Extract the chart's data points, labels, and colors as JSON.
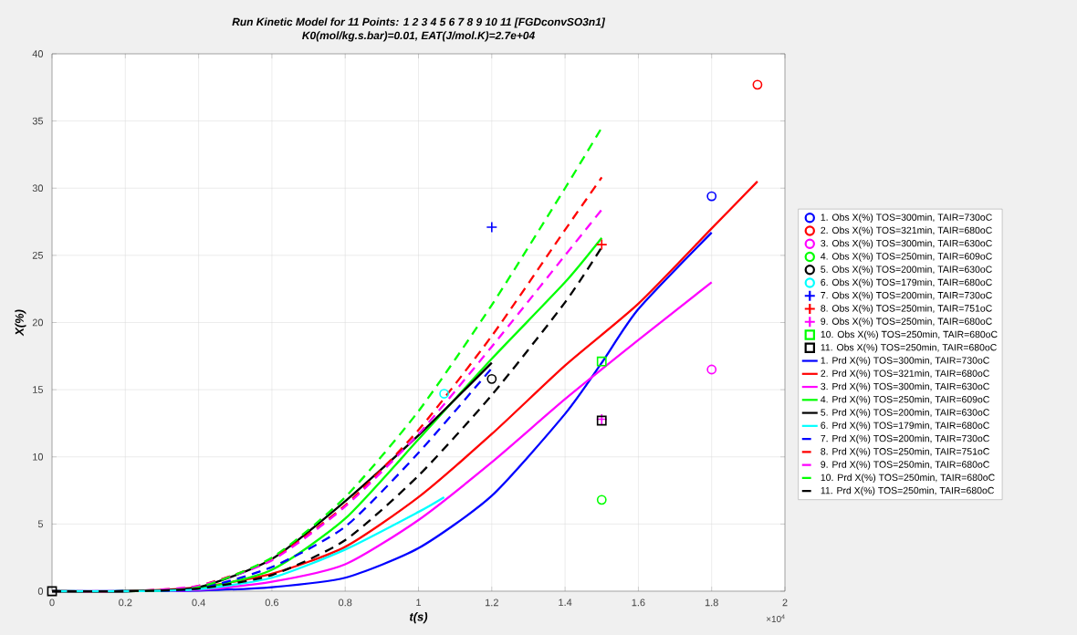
{
  "chart_data": {
    "type": "line",
    "title": "Run Kinetic Model for 11 Points:  1    2    3    4    5    6    7    8    9   10   11 [FGDconvSO3n1]",
    "subtitle": "K0(mol/kg.s.bar)=0.01, EAT(J/mol.K)=2.7e+04",
    "xlabel": "t(s)",
    "ylabel": "X(%)",
    "annotations": [
      "×10$^{4}$"
    ],
    "xlim": [
      0,
      2
    ],
    "ylim": [
      0,
      40
    ],
    "xticks": [
      0,
      0.2,
      0.4,
      0.6,
      0.8,
      1,
      1.2,
      1.4,
      1.6,
      1.8,
      2
    ],
    "yticks": [
      0,
      5,
      10,
      15,
      20,
      25,
      30,
      35,
      40
    ],
    "grid": true,
    "legend": "right",
    "series": [
      {
        "name": "1. Obs X(%) TOS=300min, TAIR=730oC",
        "type": "scatter",
        "marker": "circle",
        "color": "#0000ff",
        "x": [
          1.8
        ],
        "values": [
          29.4
        ]
      },
      {
        "name": "2. Obs X(%) TOS=321min, TAIR=680oC",
        "type": "scatter",
        "marker": "circle",
        "color": "#ff0000",
        "x": [
          1.925
        ],
        "values": [
          37.7
        ]
      },
      {
        "name": "3. Obs X(%) TOS=300min, TAIR=630oC",
        "type": "scatter",
        "marker": "circle",
        "color": "#ff00ff",
        "x": [
          1.8
        ],
        "values": [
          16.5
        ]
      },
      {
        "name": "4. Obs X(%) TOS=250min, TAIR=609oC",
        "type": "scatter",
        "marker": "circle",
        "color": "#00ff00",
        "x": [
          1.5
        ],
        "values": [
          6.8
        ]
      },
      {
        "name": "5. Obs X(%) TOS=200min, TAIR=630oC",
        "type": "scatter",
        "marker": "circle",
        "color": "#000000",
        "x": [
          1.2
        ],
        "values": [
          15.8
        ]
      },
      {
        "name": "6. Obs X(%) TOS=179min, TAIR=680oC",
        "type": "scatter",
        "marker": "circle",
        "color": "#00ffff",
        "x": [
          1.07
        ],
        "values": [
          14.7
        ]
      },
      {
        "name": "7. Obs X(%) TOS=200min, TAIR=730oC",
        "type": "scatter",
        "marker": "cross",
        "color": "#0000ff",
        "x": [
          1.2
        ],
        "values": [
          27.1
        ]
      },
      {
        "name": "8. Obs X(%) TOS=250min, TAIR=751oC",
        "type": "scatter",
        "marker": "cross",
        "color": "#ff0000",
        "x": [
          1.5
        ],
        "values": [
          25.8
        ]
      },
      {
        "name": "9. Obs X(%) TOS=250min, TAIR=680oC",
        "type": "scatter",
        "marker": "cross",
        "color": "#ff00ff",
        "x": [
          1.5
        ],
        "values": [
          12.8
        ]
      },
      {
        "name": "10. Obs X(%) TOS=250min, TAIR=680oC",
        "type": "scatter",
        "marker": "square",
        "color": "#00ff00",
        "x": [
          1.5
        ],
        "values": [
          17.1
        ]
      },
      {
        "name": "11. Obs X(%) TOS=250min, TAIR=680oC",
        "type": "scatter",
        "marker": "square",
        "color": "#000000",
        "x": [
          0,
          1.5
        ],
        "values": [
          0,
          12.7
        ]
      },
      {
        "name": "1. Prd X(%) TOS=300min, TAIR=730oC",
        "line_style": "solid",
        "color": "#0000ff",
        "x": [
          0,
          0.2,
          0.4,
          0.6,
          0.8,
          1.0,
          1.2,
          1.4,
          1.5,
          1.6,
          1.8
        ],
        "values": [
          0,
          0,
          0.05,
          0.3,
          1.0,
          3.2,
          7.1,
          13.2,
          17.0,
          21.0,
          26.7
        ]
      },
      {
        "name": "2. Prd X(%) TOS=321min, TAIR=680oC",
        "line_style": "solid",
        "color": "#ff0000",
        "x": [
          0,
          0.2,
          0.4,
          0.6,
          0.8,
          1.0,
          1.2,
          1.4,
          1.6,
          1.8,
          1.925
        ],
        "values": [
          0,
          0,
          0.3,
          1.3,
          3.3,
          7.0,
          11.7,
          16.8,
          21.4,
          27.0,
          30.5
        ]
      },
      {
        "name": "3. Prd X(%) TOS=300min, TAIR=630oC",
        "line_style": "solid",
        "color": "#ff00ff",
        "x": [
          0,
          0.2,
          0.4,
          0.6,
          0.8,
          1.0,
          1.2,
          1.4,
          1.6,
          1.8
        ],
        "values": [
          0,
          0,
          0.1,
          0.7,
          2.0,
          5.3,
          9.6,
          14.3,
          18.7,
          23.0
        ]
      },
      {
        "name": "4. Prd X(%) TOS=250min, TAIR=609oC",
        "line_style": "solid",
        "color": "#00ff00",
        "x": [
          0,
          0.2,
          0.4,
          0.6,
          0.8,
          1.0,
          1.2,
          1.4,
          1.5
        ],
        "values": [
          0,
          0,
          0.2,
          1.6,
          5.4,
          11.3,
          17.3,
          23.0,
          26.3
        ]
      },
      {
        "name": "5. Prd X(%) TOS=200min, TAIR=630oC",
        "line_style": "solid",
        "color": "#000000",
        "x": [
          0,
          0.2,
          0.4,
          0.6,
          0.8,
          1.0,
          1.2
        ],
        "values": [
          0,
          0,
          0.3,
          2.4,
          6.7,
          11.6,
          17.0
        ]
      },
      {
        "name": "6. Prd X(%) TOS=179min, TAIR=680oC",
        "line_style": "solid",
        "color": "#00ffff",
        "x": [
          0,
          0.2,
          0.4,
          0.6,
          0.8,
          1.0,
          1.07
        ],
        "values": [
          0,
          0,
          0.15,
          1.0,
          3.1,
          5.9,
          7.0
        ]
      },
      {
        "name": "7. Prd X(%) TOS=200min, TAIR=730oC",
        "line_style": "dashed",
        "color": "#0000ff",
        "x": [
          0,
          0.2,
          0.4,
          0.6,
          0.8,
          1.0,
          1.2
        ],
        "values": [
          0,
          0,
          0.2,
          1.8,
          4.8,
          10.3,
          16.6
        ]
      },
      {
        "name": "8. Prd X(%) TOS=250min, TAIR=751oC",
        "line_style": "dashed",
        "color": "#ff0000",
        "x": [
          0,
          0.2,
          0.4,
          0.6,
          0.8,
          1.0,
          1.2,
          1.4,
          1.5
        ],
        "values": [
          0,
          0,
          0.4,
          2.4,
          6.4,
          12.0,
          19.0,
          26.9,
          30.8
        ]
      },
      {
        "name": "9. Prd X(%) TOS=250min, TAIR=680oC",
        "line_style": "dashed",
        "color": "#ff00ff",
        "x": [
          0,
          0.2,
          0.4,
          0.6,
          0.8,
          1.0,
          1.2,
          1.4,
          1.5
        ],
        "values": [
          0,
          0,
          0.4,
          2.3,
          6.3,
          11.7,
          18.2,
          25.0,
          28.4
        ]
      },
      {
        "name": "10. Prd X(%) TOS=250min, TAIR=680oC",
        "line_style": "dashed",
        "color": "#00ff00",
        "x": [
          0,
          0.2,
          0.4,
          0.6,
          0.8,
          1.0,
          1.2,
          1.4,
          1.5
        ],
        "values": [
          0,
          0,
          0.3,
          2.5,
          7.0,
          13.4,
          21.3,
          30.0,
          34.5
        ]
      },
      {
        "name": "11. Prd X(%) TOS=250min, TAIR=680oC",
        "line_style": "dashed",
        "color": "#000000",
        "x": [
          0,
          0.2,
          0.4,
          0.6,
          0.8,
          1.0,
          1.2,
          1.4,
          1.5
        ],
        "values": [
          0,
          0,
          0.2,
          1.2,
          3.8,
          8.6,
          14.6,
          21.5,
          25.6
        ]
      }
    ]
  }
}
